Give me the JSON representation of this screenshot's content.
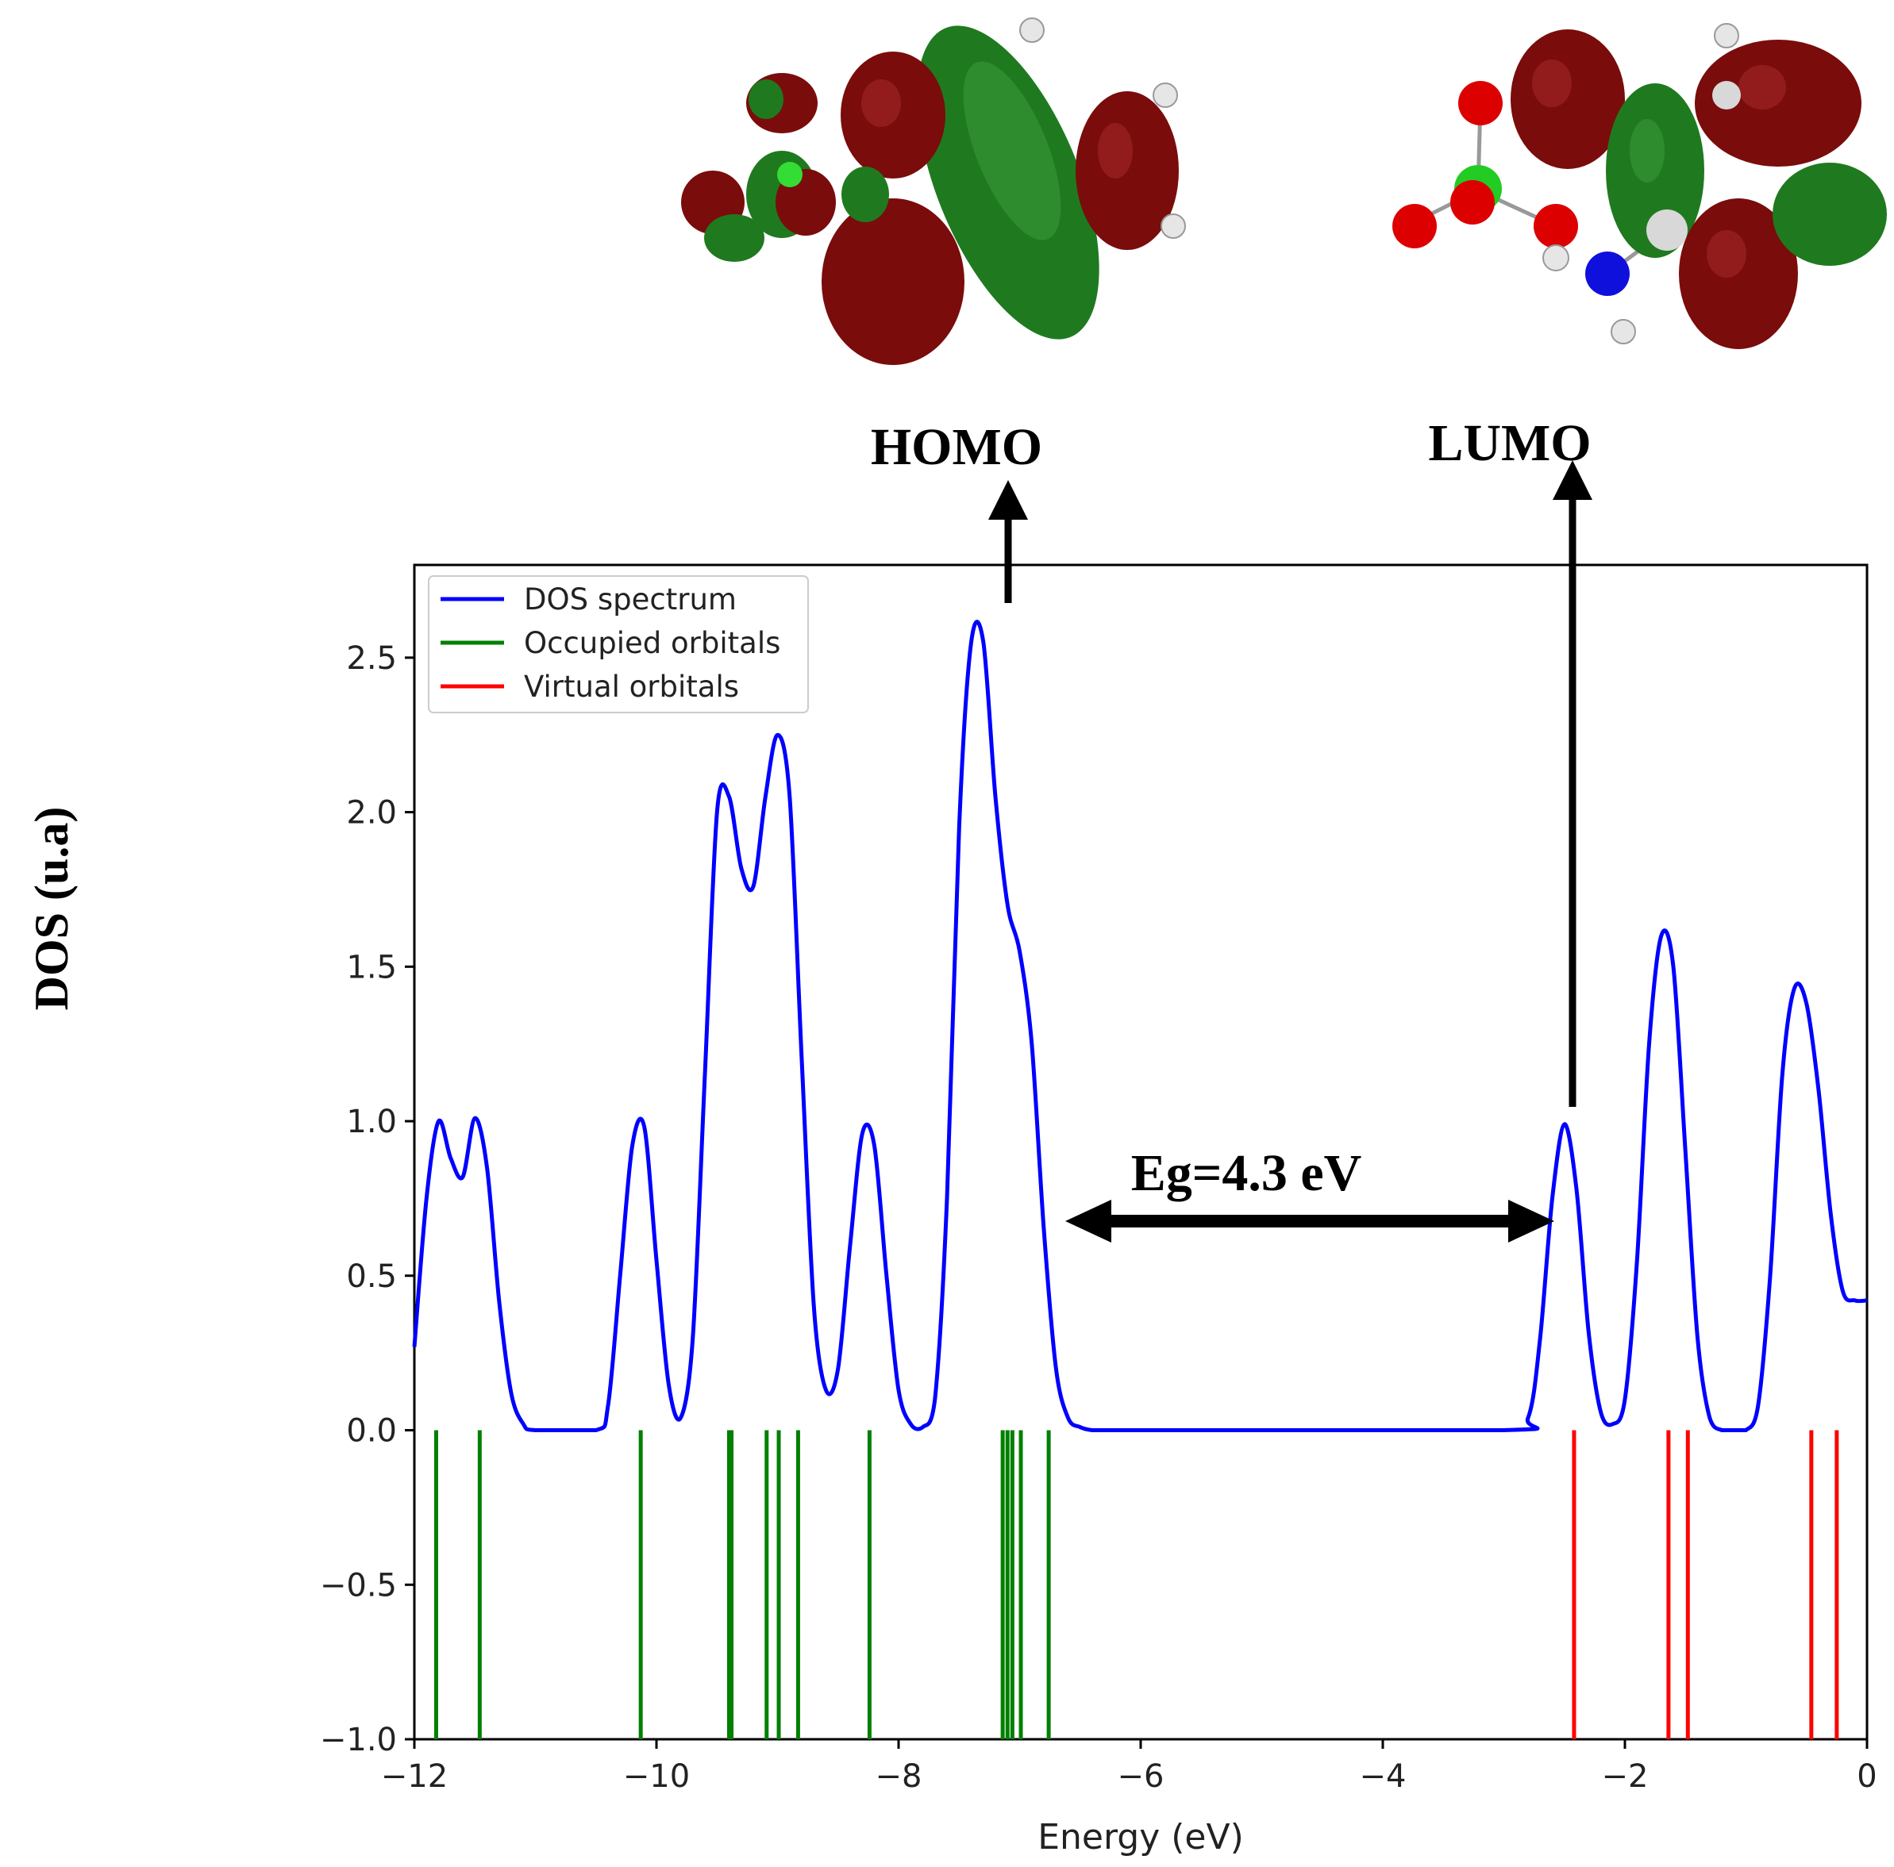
{
  "chart_data": {
    "type": "line",
    "xlabel": "Energy (eV)",
    "ylabel": "DOS (u.a)",
    "xlim": [
      -12,
      0
    ],
    "ylim": [
      -1.0,
      2.8
    ],
    "x_ticks": [
      -12,
      -10,
      -8,
      -6,
      -4,
      -2,
      0
    ],
    "x_tick_labels": [
      "−12",
      "−10",
      "−8",
      "−6",
      "−4",
      "−2",
      "0"
    ],
    "y_ticks": [
      -1.0,
      -0.5,
      0.0,
      0.5,
      1.0,
      1.5,
      2.0,
      2.5
    ],
    "y_tick_labels": [
      "−1.0",
      "−0.5",
      "0.0",
      "0.5",
      "1.0",
      "1.5",
      "2.0",
      "2.5"
    ],
    "legend_position": "top-left",
    "series": [
      {
        "name": "DOS spectrum",
        "color": "#0000ff",
        "x": [
          -12.0,
          -11.9,
          -11.8,
          -11.7,
          -11.6,
          -11.5,
          -11.4,
          -11.3,
          -11.2,
          -11.1,
          -11.0,
          -10.5,
          -10.4,
          -10.3,
          -10.2,
          -10.1,
          -10.0,
          -9.9,
          -9.8,
          -9.7,
          -9.6,
          -9.5,
          -9.4,
          -9.3,
          -9.2,
          -9.1,
          -9.0,
          -8.9,
          -8.8,
          -8.7,
          -8.6,
          -8.5,
          -8.4,
          -8.3,
          -8.2,
          -8.1,
          -8.0,
          -7.9,
          -7.8,
          -7.7,
          -7.6,
          -7.5,
          -7.4,
          -7.3,
          -7.2,
          -7.1,
          -7.0,
          -6.9,
          -6.8,
          -6.7,
          -6.6,
          -6.5,
          -6.4,
          -6.3,
          -6.2,
          -6.0,
          -3.0,
          -2.8,
          -2.7,
          -2.6,
          -2.5,
          -2.4,
          -2.3,
          -2.2,
          -2.1,
          -2.0,
          -1.9,
          -1.8,
          -1.7,
          -1.6,
          -1.5,
          -1.4,
          -1.3,
          -1.2,
          -1.1,
          -1.0,
          -0.9,
          -0.8,
          -0.7,
          -0.6,
          -0.5,
          -0.4,
          -0.3,
          -0.2,
          -0.1,
          0.0
        ],
        "y": [
          0.27,
          0.75,
          1.0,
          0.88,
          0.82,
          1.01,
          0.85,
          0.42,
          0.12,
          0.02,
          0.0,
          0.0,
          0.08,
          0.5,
          0.92,
          0.98,
          0.55,
          0.15,
          0.04,
          0.3,
          1.15,
          2.0,
          2.05,
          1.82,
          1.76,
          2.05,
          2.25,
          2.05,
          1.2,
          0.4,
          0.13,
          0.2,
          0.6,
          0.96,
          0.92,
          0.5,
          0.13,
          0.02,
          0.01,
          0.1,
          0.75,
          1.95,
          2.55,
          2.55,
          2.05,
          1.7,
          1.55,
          1.25,
          0.65,
          0.2,
          0.04,
          0.01,
          0.0,
          0.0,
          0.0,
          0.0,
          0.0,
          0.04,
          0.3,
          0.75,
          0.99,
          0.78,
          0.32,
          0.06,
          0.02,
          0.1,
          0.55,
          1.25,
          1.6,
          1.5,
          0.9,
          0.3,
          0.04,
          0.0,
          0.0,
          0.0,
          0.08,
          0.5,
          1.15,
          1.43,
          1.38,
          1.1,
          0.7,
          0.45,
          0.42,
          0.42
        ]
      },
      {
        "name": "Occupied orbitals",
        "color": "#008000",
        "x": [
          -11.82,
          -11.46,
          -10.13,
          -9.4,
          -9.38,
          -9.09,
          -8.99,
          -8.83,
          -8.24,
          -7.14,
          -7.1,
          -7.06,
          -6.99,
          -6.76
        ]
      },
      {
        "name": "Virtual orbitals",
        "color": "#ff0000",
        "x": [
          -2.42,
          -1.64,
          -1.48,
          -0.46,
          -0.25
        ]
      }
    ],
    "annotations": {
      "homo": "HOMO",
      "lumo": "LUMO",
      "gap": "Eg=4.3 eV"
    }
  }
}
